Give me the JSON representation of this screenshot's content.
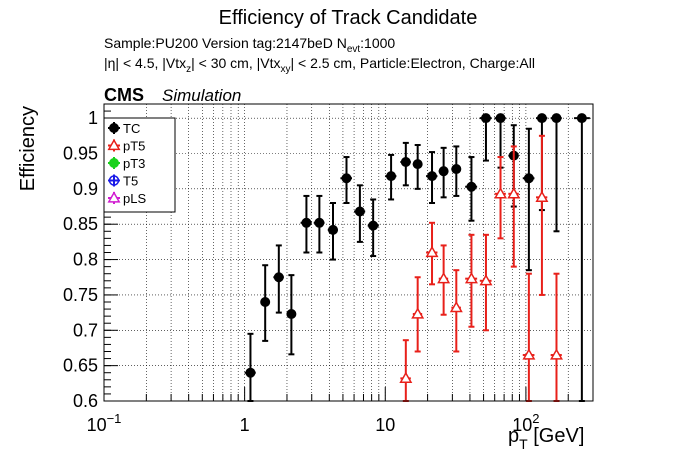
{
  "chart_data": {
    "type": "scatter",
    "title": "Efficiency of Track Candidate",
    "info_line1": {
      "sample": "Sample:PU200   Version tag:2147beD  N",
      "nevt_sub": "evt",
      "nevt_val": ":1000"
    },
    "info_line2": {
      "p1": "|η| < 4.5, |Vtx",
      "s1": "z",
      "p2": "| < 30 cm, |Vtx",
      "s2": "xy",
      "p3": "| < 2.5 cm, Particle:Electron, Charge:All"
    },
    "cms_label": "CMS",
    "sim_label": "Simulation",
    "ylabel": "Efficiency",
    "xlabel_main": "p",
    "xlabel_sub": "T",
    "xlabel_unit": " [GeV]",
    "x_scale": "log",
    "xlim": [
      0.1,
      300
    ],
    "ylim": [
      0.6,
      1.02
    ],
    "grid": true,
    "legend_position": "top-left",
    "x_tick_labels": [
      {
        "x": 0.1,
        "base": "10",
        "exp": "−1"
      },
      {
        "x": 1,
        "base": "1",
        "exp": ""
      },
      {
        "x": 10,
        "base": "10",
        "exp": ""
      },
      {
        "x": 100,
        "base": "10",
        "exp": "2"
      }
    ],
    "y_ticks": [
      0.6,
      0.65,
      0.7,
      0.75,
      0.8,
      0.85,
      0.9,
      0.95,
      1
    ],
    "y_tick_labels": [
      "0.6",
      "0.65",
      "0.7",
      "0.75",
      "0.8",
      "0.85",
      "0.9",
      "0.95",
      "1"
    ],
    "series": [
      {
        "name": "TC",
        "color": "#000000",
        "marker": "filled-circle",
        "points": [
          {
            "x": 1.1,
            "xlo": 1.0,
            "xhi": 1.2,
            "y": 0.64,
            "ylo": 0.6,
            "yhi": 0.695
          },
          {
            "x": 1.4,
            "xlo": 1.3,
            "xhi": 1.5,
            "y": 0.74,
            "ylo": 0.685,
            "yhi": 0.792
          },
          {
            "x": 1.75,
            "xlo": 1.6,
            "xhi": 1.9,
            "y": 0.775,
            "ylo": 0.725,
            "yhi": 0.82
          },
          {
            "x": 2.15,
            "xlo": 2.0,
            "xhi": 2.3,
            "y": 0.723,
            "ylo": 0.666,
            "yhi": 0.778
          },
          {
            "x": 2.75,
            "xlo": 2.5,
            "xhi": 3.0,
            "y": 0.852,
            "ylo": 0.81,
            "yhi": 0.89
          },
          {
            "x": 3.4,
            "xlo": 3.1,
            "xhi": 3.7,
            "y": 0.852,
            "ylo": 0.81,
            "yhi": 0.89
          },
          {
            "x": 4.25,
            "xlo": 3.9,
            "xhi": 4.6,
            "y": 0.842,
            "ylo": 0.8,
            "yhi": 0.88
          },
          {
            "x": 5.3,
            "xlo": 4.8,
            "xhi": 5.8,
            "y": 0.915,
            "ylo": 0.88,
            "yhi": 0.945
          },
          {
            "x": 6.6,
            "xlo": 6.0,
            "xhi": 7.2,
            "y": 0.868,
            "ylo": 0.825,
            "yhi": 0.905
          },
          {
            "x": 8.2,
            "xlo": 7.5,
            "xhi": 9.0,
            "y": 0.848,
            "ylo": 0.805,
            "yhi": 0.885
          },
          {
            "x": 11.0,
            "xlo": 10.0,
            "xhi": 12.0,
            "y": 0.918,
            "ylo": 0.885,
            "yhi": 0.948
          },
          {
            "x": 14.0,
            "xlo": 12.8,
            "xhi": 15.2,
            "y": 0.938,
            "ylo": 0.905,
            "yhi": 0.965
          },
          {
            "x": 17.0,
            "xlo": 15.7,
            "xhi": 18.3,
            "y": 0.935,
            "ylo": 0.9,
            "yhi": 0.962
          },
          {
            "x": 21.5,
            "xlo": 19.5,
            "xhi": 23.5,
            "y": 0.918,
            "ylo": 0.88,
            "yhi": 0.952
          },
          {
            "x": 26.0,
            "xlo": 24.0,
            "xhi": 28.0,
            "y": 0.925,
            "ylo": 0.888,
            "yhi": 0.958
          },
          {
            "x": 32.0,
            "xlo": 29.5,
            "xhi": 34.5,
            "y": 0.928,
            "ylo": 0.89,
            "yhi": 0.96
          },
          {
            "x": 41.0,
            "xlo": 37.0,
            "xhi": 45.0,
            "y": 0.903,
            "ylo": 0.855,
            "yhi": 0.945
          },
          {
            "x": 52.0,
            "xlo": 47.0,
            "xhi": 57.0,
            "y": 1.0,
            "ylo": 0.94,
            "yhi": 1.0
          },
          {
            "x": 66.0,
            "xlo": 60.0,
            "xhi": 72.0,
            "y": 1.0,
            "ylo": 0.93,
            "yhi": 1.0
          },
          {
            "x": 82.0,
            "xlo": 75.0,
            "xhi": 89.0,
            "y": 0.947,
            "ylo": 0.875,
            "yhi": 0.99
          },
          {
            "x": 105.0,
            "xlo": 95.0,
            "xhi": 115.0,
            "y": 0.915,
            "ylo": 0.785,
            "yhi": 0.985
          },
          {
            "x": 130.0,
            "xlo": 118.0,
            "xhi": 142.0,
            "y": 1.0,
            "ylo": 0.87,
            "yhi": 1.0
          },
          {
            "x": 165.0,
            "xlo": 150.0,
            "xhi": 180.0,
            "y": 1.0,
            "ylo": 0.84,
            "yhi": 1.0
          },
          {
            "x": 250.0,
            "xlo": 220.0,
            "xhi": 285.0,
            "y": 1.0,
            "ylo": 0.6,
            "yhi": 1.0
          }
        ]
      },
      {
        "name": "pT5",
        "color": "#e8201a",
        "marker": "open-triangle",
        "points": [
          {
            "x": 14.0,
            "xlo": 12.8,
            "xhi": 15.2,
            "y": 0.632,
            "ylo": 0.6,
            "yhi": 0.686
          },
          {
            "x": 17.0,
            "xlo": 15.7,
            "xhi": 18.3,
            "y": 0.723,
            "ylo": 0.67,
            "yhi": 0.775
          },
          {
            "x": 21.5,
            "xlo": 19.5,
            "xhi": 23.5,
            "y": 0.81,
            "ylo": 0.765,
            "yhi": 0.852
          },
          {
            "x": 26.0,
            "xlo": 24.0,
            "xhi": 28.0,
            "y": 0.773,
            "ylo": 0.722,
            "yhi": 0.82
          },
          {
            "x": 32.0,
            "xlo": 29.5,
            "xhi": 34.5,
            "y": 0.732,
            "ylo": 0.67,
            "yhi": 0.785
          },
          {
            "x": 41.0,
            "xlo": 37.0,
            "xhi": 45.0,
            "y": 0.773,
            "ylo": 0.705,
            "yhi": 0.835
          },
          {
            "x": 52.0,
            "xlo": 47.0,
            "xhi": 57.0,
            "y": 0.77,
            "ylo": 0.7,
            "yhi": 0.835
          },
          {
            "x": 66.0,
            "xlo": 60.0,
            "xhi": 72.0,
            "y": 0.893,
            "ylo": 0.83,
            "yhi": 0.945
          },
          {
            "x": 82.0,
            "xlo": 75.0,
            "xhi": 89.0,
            "y": 0.893,
            "ylo": 0.79,
            "yhi": 0.96
          },
          {
            "x": 105.0,
            "xlo": 95.0,
            "xhi": 115.0,
            "y": 0.665,
            "ylo": 0.6,
            "yhi": 0.78
          },
          {
            "x": 130.0,
            "xlo": 118.0,
            "xhi": 142.0,
            "y": 0.888,
            "ylo": 0.75,
            "yhi": 0.975
          },
          {
            "x": 165.0,
            "xlo": 150.0,
            "xhi": 180.0,
            "y": 0.665,
            "ylo": 0.6,
            "yhi": 0.78
          }
        ]
      },
      {
        "name": "pT3",
        "color": "#19d11c",
        "marker": "filled-circle",
        "points": []
      },
      {
        "name": "T5",
        "color": "#1a1ae8",
        "marker": "open-circle",
        "points": []
      },
      {
        "name": "pLS",
        "color": "#d11cd1",
        "marker": "open-triangle",
        "points": []
      }
    ]
  }
}
